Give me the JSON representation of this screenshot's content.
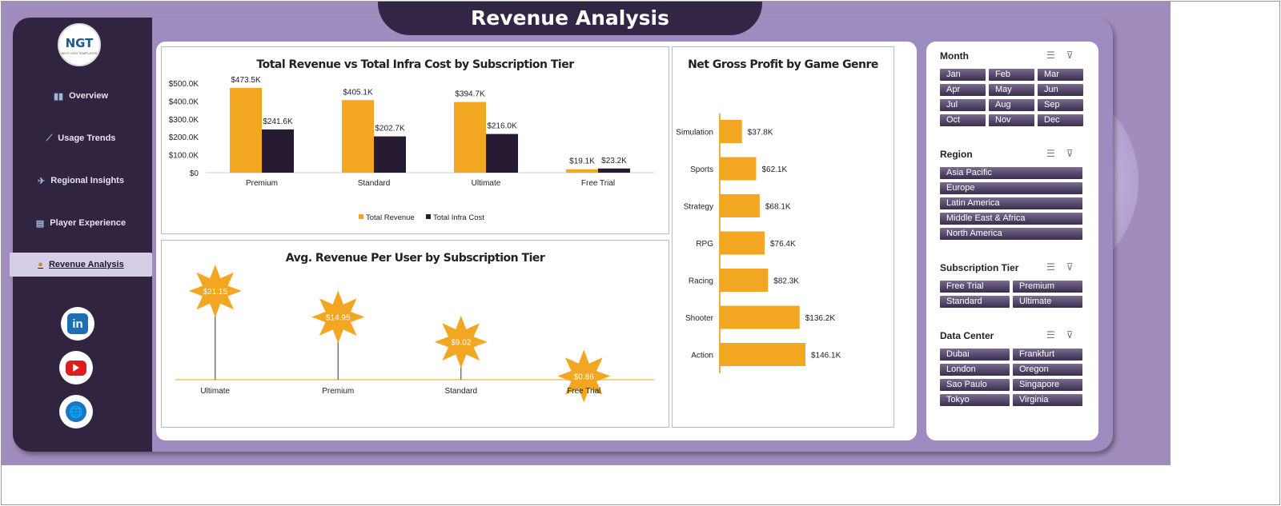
{
  "header": {
    "title": "Revenue Analysis"
  },
  "logo": {
    "text": "NGT",
    "subtitle": "NEXT GEN TEMPLATES"
  },
  "sidebar": {
    "items": [
      {
        "label": "Overview",
        "icon": "bar-chart-icon"
      },
      {
        "label": "Usage Trends",
        "icon": "trend-chart-icon"
      },
      {
        "label": "Regional Insights",
        "icon": "world-map-icon"
      },
      {
        "label": "Player Experience",
        "icon": "clipboard-icon"
      },
      {
        "label": "Revenue Analysis",
        "icon": "money-bag-icon",
        "active": true
      }
    ],
    "social": [
      {
        "name": "linkedin-icon",
        "label": "in"
      },
      {
        "name": "youtube-icon"
      },
      {
        "name": "website-icon",
        "label": "🌐"
      }
    ]
  },
  "charts": {
    "revenue_vs_cost": {
      "title": "Total Revenue vs Total Infra Cost by Subscription Tier"
    },
    "arpu": {
      "title": "Avg. Revenue Per User by Subscription Tier"
    },
    "gross_profit": {
      "title": "Net Gross Profit by Game Genre"
    }
  },
  "chart_data": [
    {
      "type": "bar",
      "title": "Total Revenue vs Total Infra Cost by Subscription Tier",
      "categories": [
        "Premium",
        "Standard",
        "Ultimate",
        "Free Trial"
      ],
      "series": [
        {
          "name": "Total Revenue",
          "values": [
            473.5,
            405.1,
            394.7,
            19.1
          ],
          "labels": [
            "$473.5K",
            "$405.1K",
            "$394.7K",
            "$19.1K"
          ],
          "color": "#f2a622"
        },
        {
          "name": "Total Infra Cost",
          "values": [
            241.6,
            202.7,
            216.0,
            23.2
          ],
          "labels": [
            "$241.6K",
            "$202.7K",
            "$216.0K",
            "$23.2K"
          ],
          "color": "#261b33"
        }
      ],
      "yticks": [
        "$0",
        "$100.0K",
        "$200.0K",
        "$300.0K",
        "$400.0K",
        "$500.0K"
      ],
      "ylim": [
        0,
        500
      ],
      "legend": "bottom"
    },
    {
      "type": "scatter",
      "title": "Avg. Revenue Per User by Subscription Tier",
      "categories": [
        "Ultimate",
        "Premium",
        "Standard",
        "Free Trial"
      ],
      "values": [
        21.15,
        14.95,
        9.02,
        0.86
      ],
      "labels": [
        "$21.15",
        "$14.95",
        "$9.02",
        "$0.86"
      ],
      "color": "#f2a622"
    },
    {
      "type": "bar",
      "orientation": "horizontal",
      "title": "Net Gross Profit by Game Genre",
      "categories": [
        "Simulation",
        "Sports",
        "Strategy",
        "RPG",
        "Racing",
        "Shooter",
        "Action"
      ],
      "values": [
        37.8,
        62.1,
        68.1,
        76.4,
        82.3,
        136.2,
        146.1
      ],
      "labels": [
        "$37.8K",
        "$62.1K",
        "$68.1K",
        "$76.4K",
        "$82.3K",
        "$136.2K",
        "$146.1K"
      ],
      "color": "#f2a622"
    }
  ],
  "slicers": [
    {
      "title": "Month",
      "items": [
        "Jan",
        "Feb",
        "Mar",
        "Apr",
        "May",
        "Jun",
        "Jul",
        "Aug",
        "Sep",
        "Oct",
        "Nov",
        "Dec"
      ],
      "cols": 3
    },
    {
      "title": "Region",
      "items": [
        "Asia Pacific",
        "Europe",
        "Latin America",
        "Middle East & Africa",
        "North America"
      ],
      "cols": 1
    },
    {
      "title": "Subscription Tier",
      "items": [
        "Free Trial",
        "Premium",
        "Standard",
        "Ultimate"
      ],
      "cols": 2
    },
    {
      "title": "Data Center",
      "items": [
        "Dubai",
        "Frankfurt",
        "London",
        "Oregon",
        "Sao Paulo",
        "Singapore",
        "Tokyo",
        "Virginia"
      ],
      "cols": 2
    }
  ]
}
